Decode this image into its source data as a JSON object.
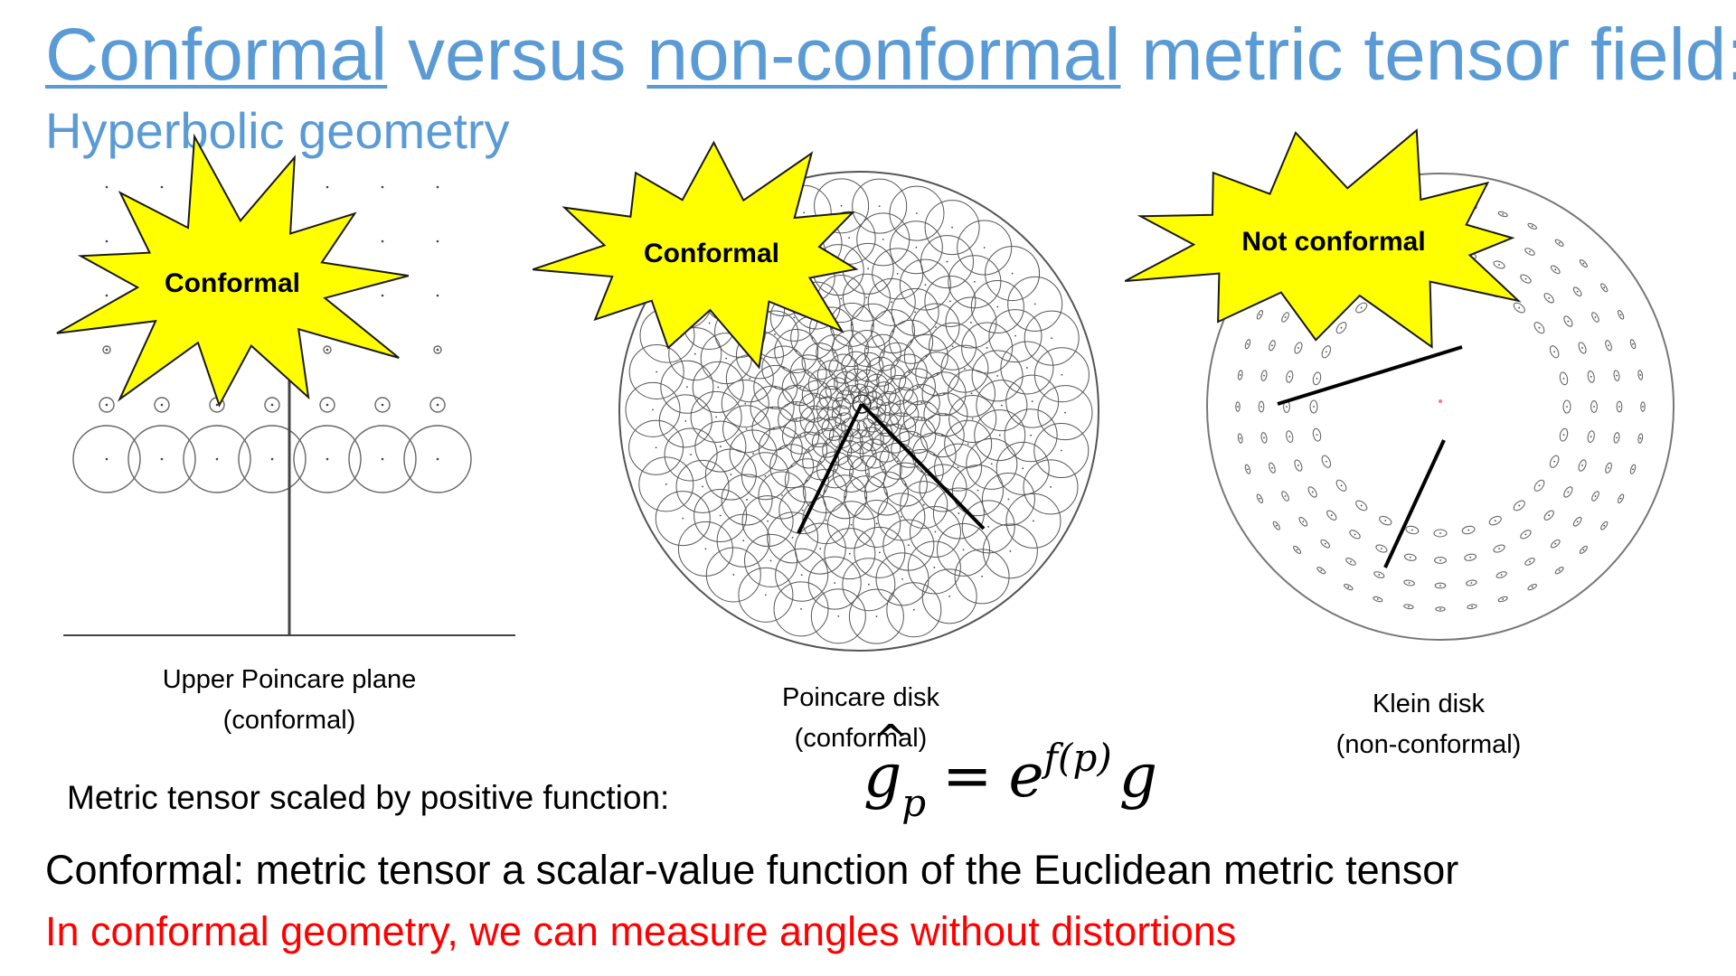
{
  "title": {
    "part1": "Conformal",
    "part2": " versus ",
    "part3": "non-conformal",
    "part4": " metric tensor field:"
  },
  "subtitle": "Hyperbolic geometry",
  "figures": {
    "upper_plane": {
      "burst_label": "Conformal",
      "caption_line1": "Upper Poincare plane",
      "caption_line2": "(conformal)"
    },
    "poincare_disk": {
      "burst_label": "Conformal",
      "caption_line1": "Poincare disk",
      "caption_line2": "(conformal)"
    },
    "klein_disk": {
      "burst_label": "Not conformal",
      "caption_line1": "Klein disk",
      "caption_line2": "(non-conformal)"
    }
  },
  "formula": {
    "label": "Metric tensor scaled by positive function:",
    "lhs": "g",
    "lhs_sub": "p",
    "equals": "=",
    "base": "e",
    "exponent": "f(p)",
    "rhs": "g"
  },
  "statement": "Conformal: metric tensor a scalar-value function of the Euclidean metric tensor",
  "highlight": "In conformal geometry, we can measure angles without distortions",
  "colors": {
    "title": "#5b9bd5",
    "burst_fill": "#ffff00",
    "burst_stroke": "#1a1a1a",
    "highlight": "#ff0000"
  }
}
